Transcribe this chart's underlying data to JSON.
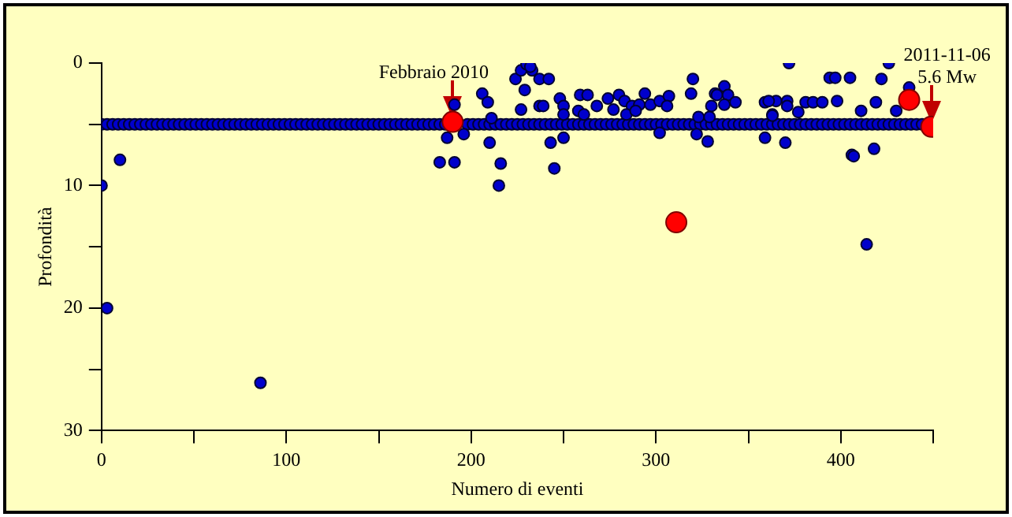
{
  "chart_data": {
    "type": "scatter",
    "xlabel": "Numero di eventi",
    "ylabel": "Profondità",
    "xlim": [
      0,
      450
    ],
    "ylim": [
      30,
      0
    ],
    "xticks": [
      0,
      {
        "value": 50,
        "label": null
      },
      100,
      {
        "value": 150,
        "label": null
      },
      200,
      {
        "value": 250,
        "label": null
      },
      300,
      {
        "value": 350,
        "label": null
      },
      400,
      {
        "value": 450,
        "label": null
      }
    ],
    "yticks": [
      0,
      {
        "value": 5,
        "label": null
      },
      10,
      {
        "value": 15,
        "label": null
      },
      20,
      {
        "value": 25,
        "label": null
      },
      30
    ],
    "grid": false,
    "legend": false,
    "marker": "circle",
    "series": [
      {
        "color": "#0000cc",
        "x": [
          0,
          3,
          6,
          9,
          12,
          15,
          18,
          21,
          24,
          27,
          30,
          33,
          36,
          39,
          42,
          45,
          48,
          51,
          54,
          57,
          60,
          63,
          66,
          69,
          72,
          75,
          78,
          81,
          84,
          87,
          90,
          93,
          96,
          99,
          102,
          105,
          108,
          111,
          114,
          117,
          120,
          123,
          126,
          129,
          132,
          135,
          138,
          141,
          144,
          147,
          150,
          153,
          156,
          159,
          162,
          165,
          168,
          171,
          174,
          177,
          180,
          183,
          186,
          198,
          201,
          204,
          207,
          210,
          213,
          216,
          219,
          222,
          225,
          228,
          231,
          234,
          237,
          240,
          243,
          246,
          249,
          252,
          255,
          258,
          261,
          264,
          267,
          270,
          273,
          276,
          279,
          282,
          285,
          288,
          291,
          294,
          297,
          300,
          303,
          306,
          309,
          312,
          315,
          318,
          321,
          324,
          327,
          330,
          333,
          336,
          339,
          342,
          345,
          348,
          351,
          354,
          357,
          360,
          363,
          366,
          369,
          372,
          375,
          378,
          381,
          384,
          387,
          390,
          393,
          396,
          399,
          402,
          405,
          408,
          411,
          414,
          417,
          420,
          423,
          426,
          429,
          432,
          435,
          438,
          441,
          444
        ],
        "values": [
          5,
          5,
          5,
          5,
          5,
          5,
          5,
          5,
          5,
          5,
          5,
          5,
          5,
          5,
          5,
          5,
          5,
          5,
          5,
          5,
          5,
          5,
          5,
          5,
          5,
          5,
          5,
          5,
          5,
          5,
          5,
          5,
          5,
          5,
          5,
          5,
          5,
          5,
          5,
          5,
          5,
          5,
          5,
          5,
          5,
          5,
          5,
          5,
          5,
          5,
          5,
          5,
          5,
          5,
          5,
          5,
          5,
          5,
          5,
          5,
          5,
          5,
          5,
          5,
          5,
          5,
          5,
          5,
          5,
          5,
          5,
          5,
          5,
          5,
          5,
          5,
          5,
          5,
          5,
          5,
          5,
          5,
          5,
          5,
          5,
          5,
          5,
          5,
          5,
          5,
          5,
          5,
          5,
          5,
          5,
          5,
          5,
          5,
          5,
          5,
          5,
          5,
          5,
          5,
          5,
          5,
          5,
          5,
          5,
          5,
          5,
          5,
          5,
          5,
          5,
          5,
          5,
          5,
          5,
          5,
          5,
          5,
          5,
          5,
          5,
          5,
          5,
          5,
          5,
          5,
          5,
          5,
          5,
          5,
          5,
          5,
          5,
          5,
          5,
          5,
          5,
          5,
          5,
          5,
          5,
          5
        ]
      },
      {
        "color": "#0000cc",
        "x": [
          0,
          3,
          10,
          86,
          191,
          187,
          196,
          183,
          191,
          206,
          209,
          210,
          216,
          215,
          211,
          227,
          224,
          227,
          230,
          233,
          237,
          229,
          237,
          232,
          242,
          239,
          248,
          250,
          243,
          250,
          245,
          259,
          263,
          258,
          261,
          268,
          274,
          277,
          280,
          283,
          287,
          291,
          294,
          297,
          302,
          307,
          306,
          284,
          289,
          302,
          320,
          319,
          332,
          333,
          337,
          339,
          330,
          337,
          343,
          323,
          329,
          322,
          328,
          359,
          365,
          359,
          363,
          250,
          372,
          394,
          397,
          405,
          422,
          426,
          437,
          361,
          371,
          381,
          385,
          390,
          398,
          419,
          363,
          371,
          377,
          411,
          430,
          370,
          406,
          407,
          418,
          414
        ],
        "values": [
          10,
          20,
          7.9,
          26.1,
          3.4,
          6.1,
          5.8,
          8.1,
          8.1,
          2.5,
          3.2,
          6.5,
          8.2,
          10,
          4.5,
          3.8,
          1.3,
          0.6,
          0.1,
          0.6,
          1.3,
          2.2,
          3.5,
          0.3,
          1.3,
          3.5,
          2.9,
          3.5,
          6.5,
          6.1,
          8.6,
          2.6,
          2.6,
          3.9,
          4.2,
          3.5,
          2.9,
          3.8,
          2.6,
          3.1,
          3.5,
          3.4,
          2.5,
          3.4,
          3.1,
          2.7,
          3.5,
          4.2,
          3.9,
          5.7,
          1.3,
          2.5,
          2.5,
          2.6,
          1.9,
          2.6,
          3.5,
          3.4,
          3.2,
          4.4,
          4.4,
          5.8,
          6.4,
          3.2,
          3.1,
          6.1,
          4.2,
          4.2,
          0,
          1.2,
          1.2,
          1.2,
          1.3,
          0,
          2,
          3.1,
          3.1,
          3.2,
          3.2,
          3.2,
          3.1,
          3.2,
          4.3,
          3.5,
          4,
          3.9,
          3.9,
          6.5,
          7.5,
          7.6,
          7,
          14.8
        ]
      },
      {
        "color": "#ff0000",
        "x": [
          190,
          311,
          437,
          449
        ],
        "values": [
          4.8,
          13,
          3,
          5.2
        ]
      }
    ],
    "annotations": [
      {
        "text": "Febbraio 2010",
        "x": 190,
        "y": 4.8
      },
      {
        "text": "2011-11-06\n5.6 Mw",
        "x": 449,
        "y": 5.2
      }
    ]
  }
}
